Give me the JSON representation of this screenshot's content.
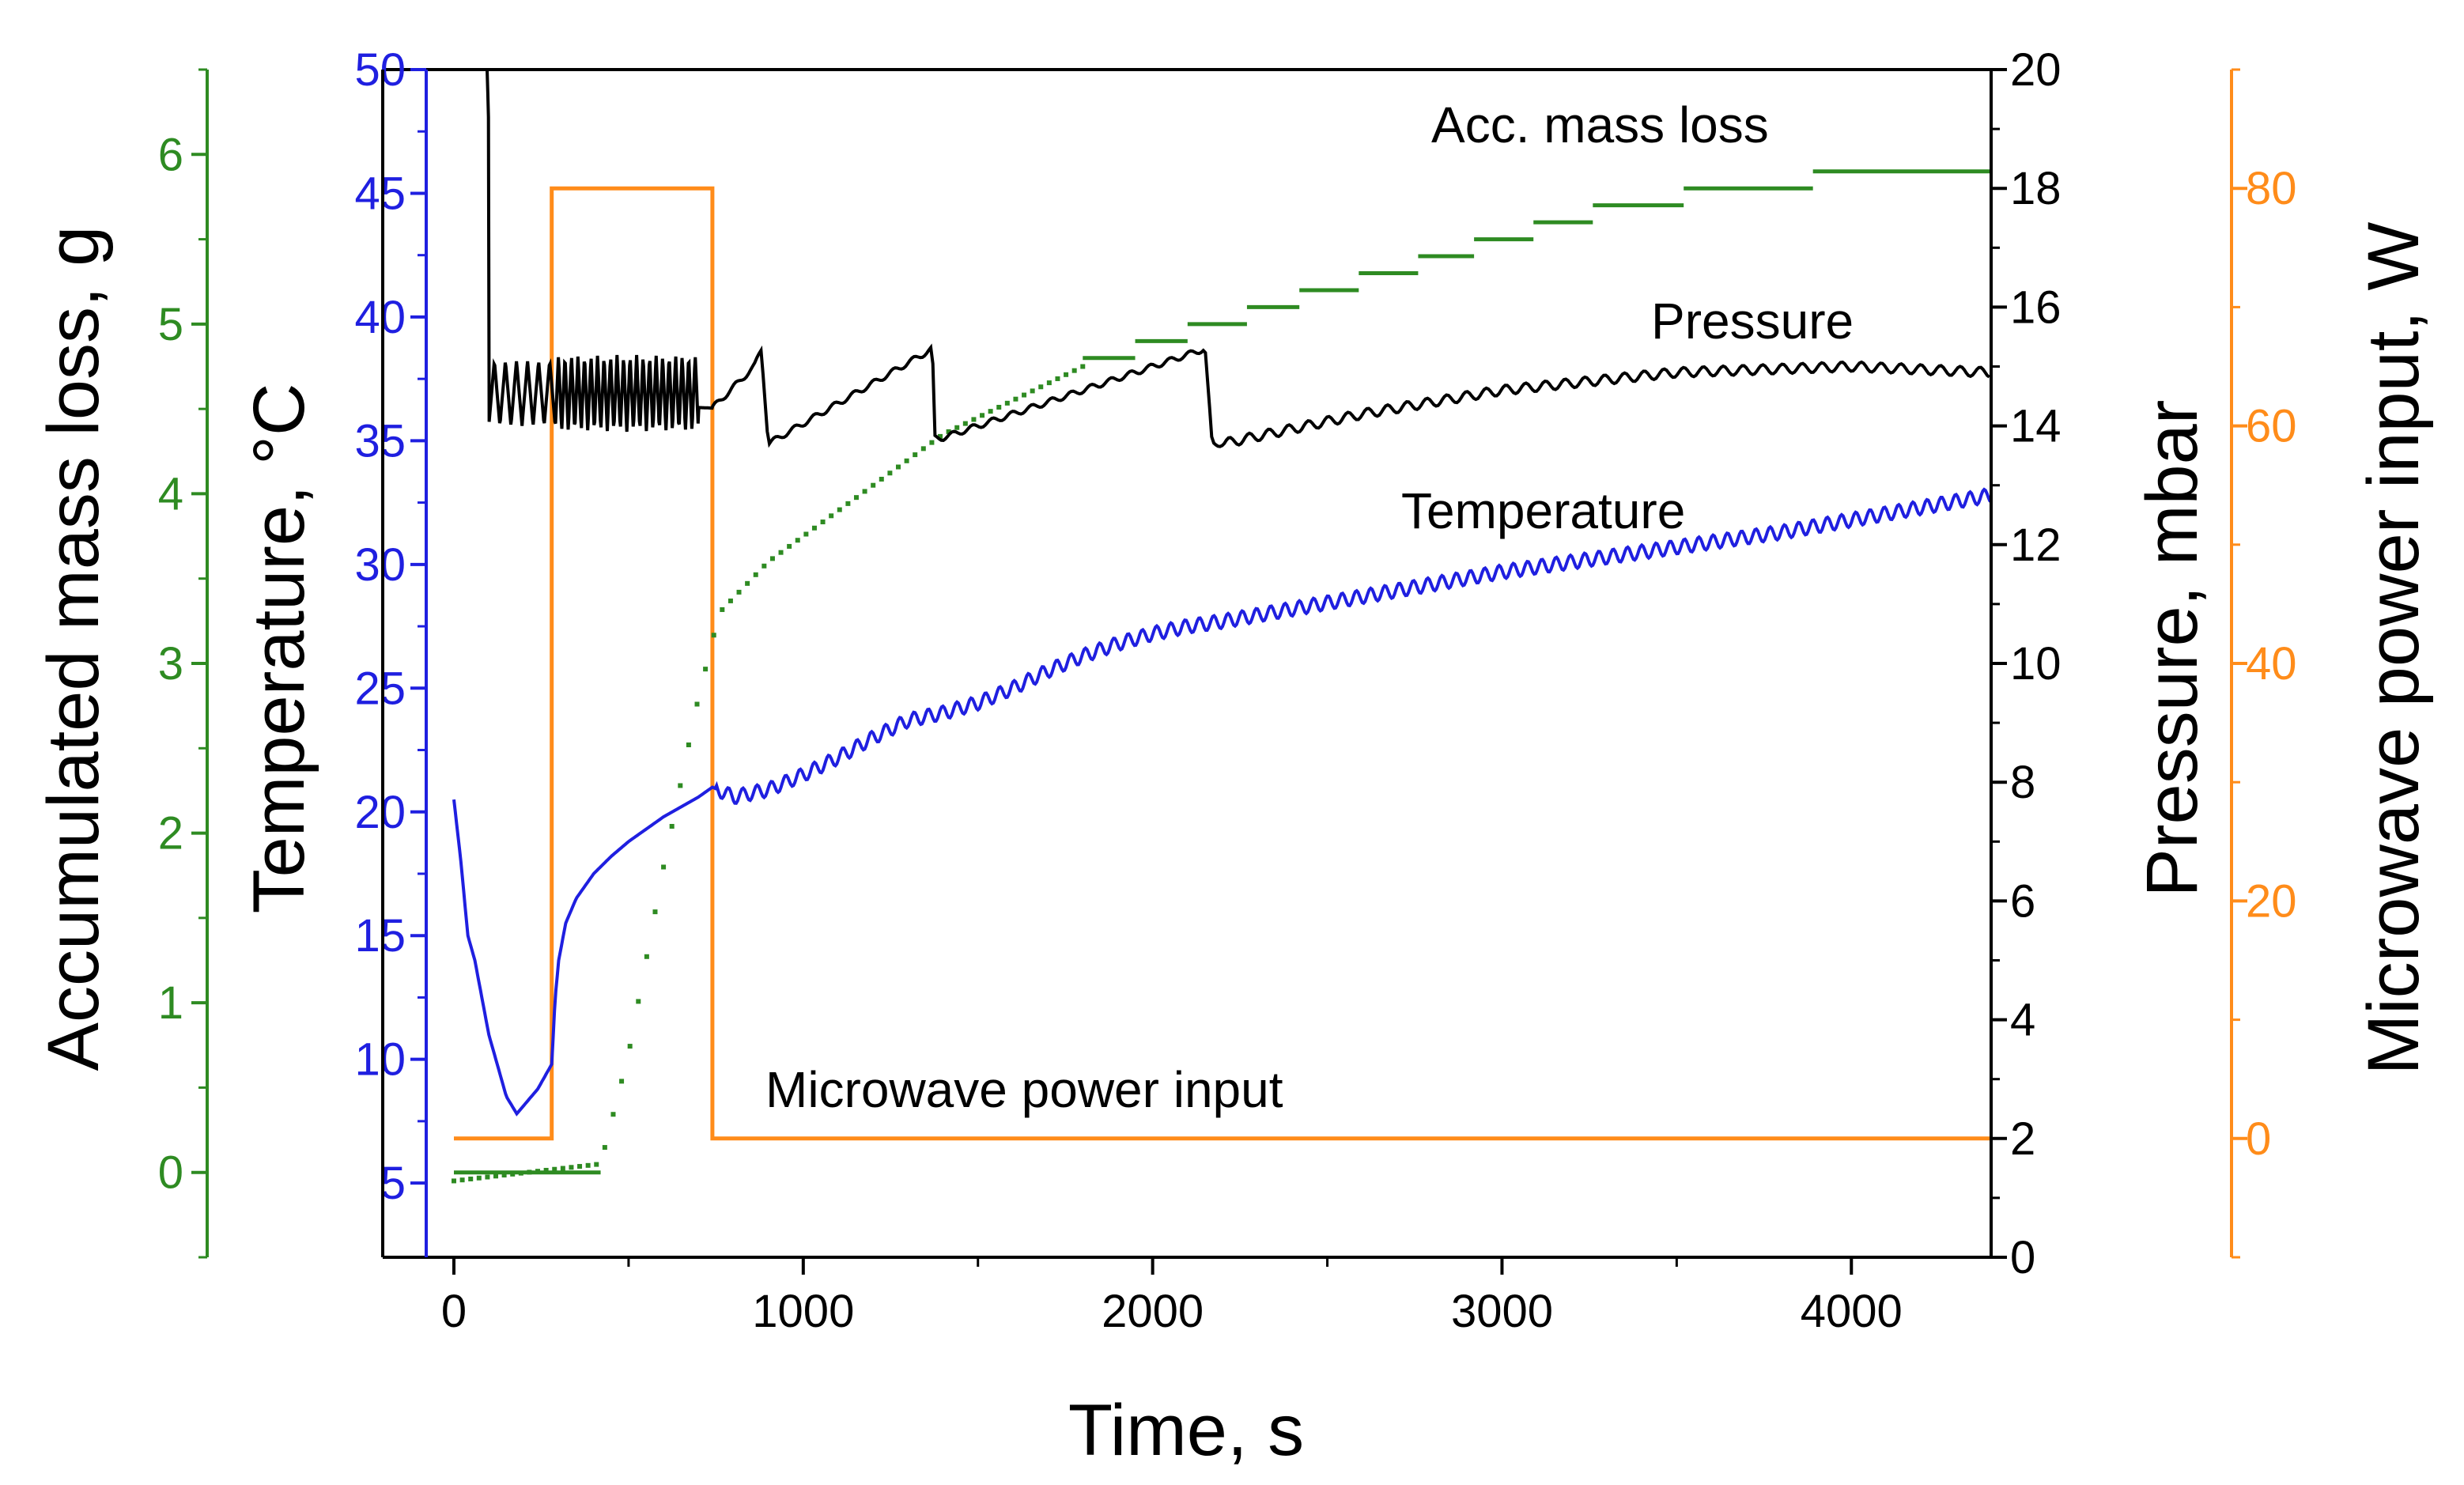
{
  "chart_data": {
    "type": "line",
    "xlabel": "Time, s",
    "xlim": [
      -200,
      4400
    ],
    "x_ticks": [
      0,
      1000,
      2000,
      3000,
      4000
    ],
    "axes": {
      "mass": {
        "label": "Accumulated mass loss, g",
        "lim": [
          -0.5,
          6.5
        ],
        "ticks": [
          0,
          1,
          2,
          3,
          4,
          5,
          6
        ],
        "color": "#2e8b22"
      },
      "temperature": {
        "label": "Temperature, °C",
        "lim": [
          2,
          50
        ],
        "ticks": [
          5,
          10,
          15,
          20,
          25,
          30,
          35,
          40,
          45,
          50
        ],
        "color": "#1f1fe0",
        "label_color": "#000000"
      },
      "pressure": {
        "label": "Pressure, mbar",
        "lim": [
          0,
          20
        ],
        "ticks": [
          0,
          2,
          4,
          6,
          8,
          10,
          12,
          14,
          16,
          18,
          20
        ],
        "color": "#000000"
      },
      "power": {
        "label": "Microwave power input, W",
        "lim": [
          -10,
          90
        ],
        "ticks": [
          0,
          20,
          40,
          60,
          80
        ],
        "color": "#ff8c1a"
      }
    },
    "annotations": [
      {
        "text": "Acc. mass loss",
        "series": "mass"
      },
      {
        "text": "Pressure",
        "series": "pressure"
      },
      {
        "text": "Temperature",
        "series": "temperature"
      },
      {
        "text": "Microwave power input",
        "series": "power"
      }
    ],
    "series": [
      {
        "name": "Microwave power input",
        "axis": "power",
        "color": "#ff8c1a",
        "x": [
          0,
          280,
          280,
          740,
          740,
          4400
        ],
        "y": [
          0,
          0,
          80,
          80,
          0,
          0
        ]
      },
      {
        "name": "Acc. mass loss",
        "axis": "mass",
        "color": "#2e8b22",
        "steps": [
          [
            0,
            420,
            0.0
          ],
          [
            1800,
            1950,
            4.8
          ],
          [
            1950,
            2100,
            4.9
          ],
          [
            2100,
            2270,
            5.0
          ],
          [
            2270,
            2420,
            5.1
          ],
          [
            2420,
            2590,
            5.2
          ],
          [
            2590,
            2760,
            5.3
          ],
          [
            2760,
            2920,
            5.4
          ],
          [
            2920,
            3090,
            5.5
          ],
          [
            3090,
            3260,
            5.6
          ],
          [
            3260,
            3520,
            5.7
          ],
          [
            3520,
            3890,
            5.8
          ],
          [
            3890,
            4400,
            5.9
          ]
        ],
        "ramp_x": [
          0,
          420,
          500,
          600,
          700,
          760,
          900,
          1000,
          1100,
          1200,
          1300,
          1400,
          1500,
          1600,
          1700,
          1800
        ],
        "ramp_y": [
          -0.05,
          0.05,
          0.7,
          1.8,
          2.8,
          3.3,
          3.6,
          3.75,
          3.9,
          4.05,
          4.2,
          4.35,
          4.45,
          4.55,
          4.65,
          4.75
        ]
      },
      {
        "name": "Pressure",
        "axis": "pressure",
        "color": "#000000",
        "x": [
          95,
          100,
          105,
          110,
          170,
          300,
          740,
          860,
          880,
          900,
          1370,
          1375,
          1400,
          2150,
          2170,
          2200,
          2600,
          3000,
          3500,
          4000,
          4400
        ],
        "y": [
          20,
          19,
          15,
          14.6,
          14.5,
          14.4,
          14.3,
          15.0,
          15.3,
          13.7,
          15.3,
          13.8,
          13.8,
          15.3,
          13.7,
          13.7,
          14.2,
          14.6,
          14.9,
          15.0,
          14.9
        ],
        "sawtooth": [
          [
            100,
            290,
            14.0,
            15.1,
            6
          ],
          [
            290,
            700,
            13.9,
            15.2,
            22
          ]
        ]
      },
      {
        "name": "Temperature",
        "axis": "temperature",
        "color": "#1f1fe0",
        "x": [
          0,
          20,
          40,
          60,
          80,
          100,
          120,
          150,
          180,
          210,
          240,
          260,
          280,
          290,
          300,
          320,
          350,
          400,
          450,
          500,
          550,
          600,
          650,
          700,
          740,
          800,
          900,
          1000,
          1100,
          1200,
          1300,
          1400,
          1500,
          1600,
          1700,
          1800,
          1900,
          2000,
          2100,
          2200,
          2400,
          2600,
          2800,
          3000,
          3200,
          3400,
          3600,
          3800,
          4000,
          4200,
          4400
        ],
        "y": [
          20.5,
          18.0,
          15.0,
          14.0,
          12.5,
          11.0,
          10.0,
          8.5,
          7.8,
          8.3,
          8.8,
          9.3,
          9.8,
          12.5,
          14.0,
          15.5,
          16.5,
          17.5,
          18.2,
          18.8,
          19.3,
          19.8,
          20.2,
          20.6,
          21.0,
          20.6,
          20.9,
          21.5,
          22.2,
          23.0,
          23.7,
          24.0,
          24.4,
          25.0,
          25.7,
          26.3,
          26.8,
          27.2,
          27.5,
          27.7,
          28.2,
          28.7,
          29.2,
          29.7,
          30.1,
          30.5,
          30.9,
          31.3,
          31.8,
          32.3,
          32.8
        ]
      }
    ]
  }
}
